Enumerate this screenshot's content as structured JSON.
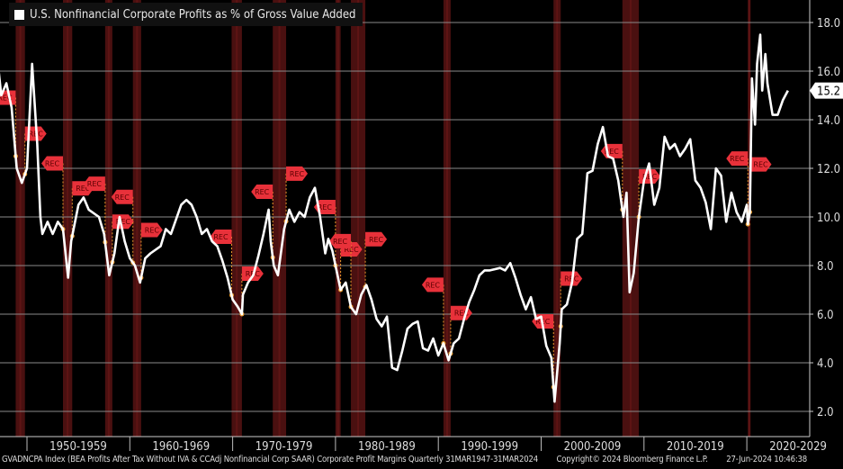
{
  "chart_data": {
    "type": "line",
    "title": "U.S. Nonfinancial Corporate Profits as % of Gross Value Added",
    "xlabel": "",
    "ylabel": "",
    "ylim": [
      1,
      19
    ],
    "xlim": [
      1947,
      2029.5
    ],
    "yticks": [
      "2.0",
      "4.0",
      "6.0",
      "8.0",
      "10.0",
      "12.0",
      "14.0",
      "16.0",
      "18.0"
    ],
    "xtick_labels": [
      "1950-1959",
      "1960-1969",
      "1970-1979",
      "1980-1989",
      "1990-1999",
      "2000-2009",
      "2010-2019",
      "2020-2029"
    ],
    "grid": true,
    "legend": "top-left",
    "last_value_label": "15.2",
    "series": [
      {
        "name": "U.S. Nonfinancial Corporate Profits as % of Gross Value Added",
        "color": "#ffffff",
        "x": [
          1947,
          1947.5,
          1948,
          1948.5,
          1949,
          1949.5,
          1950,
          1950.5,
          1951,
          1951.3,
          1951.5,
          1952,
          1952.5,
          1953,
          1953.5,
          1954,
          1954.3,
          1955,
          1955.5,
          1956,
          1957,
          1957.5,
          1958,
          1958.5,
          1959,
          1959.5,
          1960,
          1960.5,
          1961,
          1961.5,
          1962,
          1963,
          1963.5,
          1964,
          1965,
          1965.5,
          1966,
          1966.5,
          1967,
          1967.5,
          1968,
          1968.5,
          1969,
          1969.5,
          1970,
          1970.5,
          1970.9,
          1971,
          1971.5,
          1972,
          1972.5,
          1973,
          1973.5,
          1973.7,
          1974,
          1974.4,
          1975,
          1975.5,
          1976,
          1976.5,
          1977,
          1977.5,
          1978,
          1978.5,
          1979,
          1979.3,
          1979.7,
          1980,
          1980.5,
          1981,
          1981.5,
          1982,
          1982.5,
          1983,
          1983.5,
          1984,
          1984.5,
          1985,
          1985.5,
          1986,
          1986.5,
          1987,
          1987.5,
          1988,
          1988.5,
          1989,
          1989.5,
          1990,
          1990.5,
          1991,
          1991.5,
          1992,
          1992.5,
          1993,
          1993.5,
          1994,
          1994.5,
          1995,
          1996,
          1996.5,
          1997,
          1997.5,
          1998,
          1998.5,
          1999,
          1999.5,
          2000,
          2000.5,
          2001,
          2001.3,
          2001.8,
          2002,
          2002.5,
          2003,
          2003.5,
          2004,
          2004.5,
          2005,
          2005.5,
          2006,
          2006.5,
          2007,
          2007.5,
          2008,
          2008.3,
          2008.6,
          2009,
          2009.5,
          2010,
          2010.5,
          2011,
          2011.5,
          2012,
          2012.5,
          2013,
          2013.5,
          2014,
          2014.5,
          2015,
          2015.5,
          2016,
          2016.5,
          2017,
          2017.5,
          2018,
          2018.5,
          2019,
          2019.5,
          2020,
          2020.1,
          2020.3,
          2020.5,
          2020.8,
          2021,
          2021.3,
          2021.5,
          2021.8,
          2022,
          2022.5,
          2023,
          2023.5,
          2024
        ],
        "y": [
          17.0,
          15.0,
          15.5,
          14.5,
          12.0,
          11.4,
          12.0,
          16.3,
          13.0,
          10.0,
          9.3,
          9.8,
          9.3,
          9.8,
          9.5,
          7.5,
          9.0,
          10.5,
          10.8,
          10.3,
          10.0,
          9.3,
          7.6,
          8.5,
          10.0,
          9.0,
          8.3,
          8.0,
          7.3,
          8.3,
          8.5,
          8.8,
          9.5,
          9.3,
          10.5,
          10.7,
          10.5,
          10.0,
          9.3,
          9.5,
          9.0,
          8.8,
          8.2,
          7.5,
          6.6,
          6.3,
          6.0,
          6.8,
          7.3,
          7.6,
          8.4,
          9.3,
          10.3,
          9.0,
          8.0,
          7.6,
          9.5,
          10.3,
          9.8,
          10.2,
          10.0,
          10.8,
          11.2,
          10.0,
          8.5,
          9.1,
          8.6,
          8.0,
          7.0,
          7.3,
          6.3,
          6.0,
          6.8,
          7.2,
          6.6,
          5.8,
          5.5,
          5.9,
          3.8,
          3.7,
          4.5,
          5.4,
          5.6,
          5.7,
          4.6,
          4.5,
          5.0,
          4.3,
          4.8,
          4.1,
          4.8,
          5.0,
          5.8,
          6.5,
          7.0,
          7.6,
          7.8,
          7.8,
          7.9,
          7.8,
          8.1,
          7.5,
          6.8,
          6.2,
          6.7,
          5.8,
          5.9,
          4.7,
          4.2,
          2.4,
          4.8,
          6.2,
          6.4,
          7.3,
          9.1,
          9.3,
          11.8,
          11.9,
          13.0,
          13.7,
          12.5,
          12.4,
          11.5,
          10.0,
          11.0,
          6.9,
          7.7,
          10.0,
          11.5,
          12.2,
          10.5,
          11.2,
          13.3,
          12.8,
          13.0,
          12.5,
          12.8,
          13.2,
          11.5,
          11.2,
          10.6,
          9.5,
          12.0,
          11.7,
          9.8,
          11.0,
          10.2,
          9.8,
          10.5,
          9.7,
          10.2,
          15.7,
          13.8,
          16.3,
          17.5,
          15.2,
          16.7,
          15.5,
          14.2,
          14.2,
          14.8,
          15.2
        ]
      }
    ],
    "recessions": [
      [
        1948.9,
        1949.8
      ],
      [
        1953.5,
        1954.4
      ],
      [
        1957.6,
        1958.3
      ],
      [
        1960.3,
        1961.1
      ],
      [
        1969.9,
        1970.9
      ],
      [
        1973.9,
        1975.2
      ],
      [
        1980.0,
        1980.5
      ],
      [
        1981.5,
        1982.9
      ],
      [
        1990.5,
        1991.2
      ],
      [
        2001.2,
        2001.9
      ],
      [
        2007.9,
        2009.5
      ],
      [
        2020.1,
        2020.3
      ]
    ],
    "recession_marker_label": "REC",
    "colors": {
      "background": "#000000",
      "recession": "#4a1010",
      "marker": "#e8313a",
      "dot": "#e89a2c",
      "grid": "#8a8a8a"
    }
  },
  "footer": {
    "source": "GVADNCPA Index (BEA Profits After Tax Without IVA & CCAdj Nonfinancial Corp SAAR) Corporate Profit Margins  Quarterly 31MAR1947-31MAR2024",
    "copyright": "Copyright© 2024 Bloomberg Finance L.P.",
    "timestamp": "27-Jun-2024 10:46:38"
  }
}
